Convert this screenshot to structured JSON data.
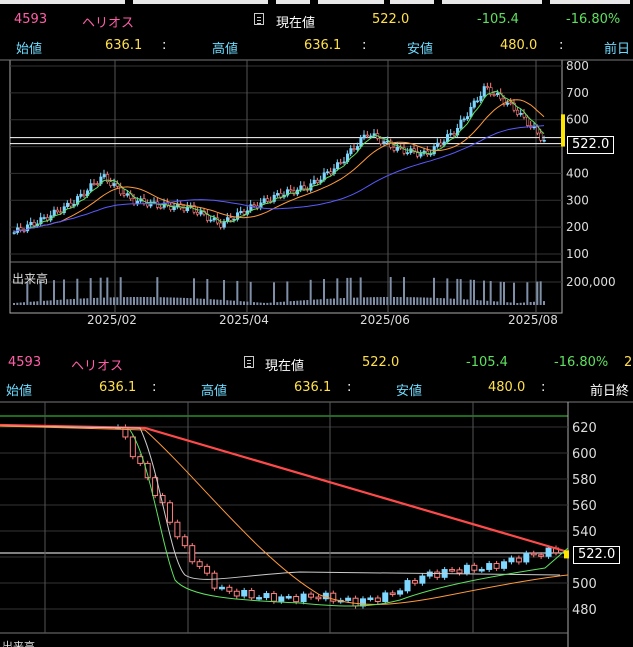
{
  "upper": {
    "code": "4593",
    "name": "ヘリオス",
    "current_label": "現在値",
    "current_value": "522.0",
    "change": "-105.4",
    "change_pct": "-16.80%",
    "open_label": "始値",
    "open_value": "636.1",
    "sep": ":",
    "high_label": "高値",
    "high_value": "636.1",
    "low_label": "安値",
    "low_value": "480.0",
    "prev_label": "前日",
    "price_tag": "522.0",
    "volume_label": "出来高"
  },
  "lower": {
    "code": "4593",
    "name": "ヘリオス",
    "current_label": "現在値",
    "current_value": "522.0",
    "change": "-105.4",
    "change_pct": "-16.80%",
    "extra": "2",
    "open_label": "始値",
    "open_value": "636.1",
    "sep": ":",
    "high_label": "高値",
    "high_value": "636.1",
    "low_label": "安値",
    "low_value": "480.0",
    "prev_label": "前日終",
    "price_tag": "522.0",
    "volume_label": "出来高"
  },
  "colors": {
    "up_candle": "#7fd8ff",
    "down_candle": "#ff7f7f",
    "ma_short": "#5fe05f",
    "ma_mid": "#ff9a3c",
    "ma_long": "#5a5aff",
    "trend": "#ff4a4a",
    "price_bar": "#ffe600"
  },
  "chart_data": [
    {
      "type": "candlestick",
      "title": "4593 ヘリオス",
      "x_tick_labels": [
        "2025/02",
        "2025/04",
        "2025/06",
        "2025/08"
      ],
      "y_tick_labels": [
        "800",
        "700",
        "600",
        "500",
        "400",
        "300",
        "200",
        "100"
      ],
      "ylim": [
        100,
        800
      ],
      "volume_tick_label": "200,000",
      "close_series": [
        {
          "date": "2024/12",
          "value": 180
        },
        {
          "date": "2025/01",
          "value": 230
        },
        {
          "date": "2025/01b",
          "value": 290
        },
        {
          "date": "2025/02",
          "value": 390
        },
        {
          "date": "2025/02b",
          "value": 300
        },
        {
          "date": "2025/03",
          "value": 280
        },
        {
          "date": "2025/03b",
          "value": 270
        },
        {
          "date": "2025/04",
          "value": 210
        },
        {
          "date": "2025/04b",
          "value": 270
        },
        {
          "date": "2025/05",
          "value": 320
        },
        {
          "date": "2025/05b",
          "value": 350
        },
        {
          "date": "2025/06",
          "value": 430
        },
        {
          "date": "2025/06b",
          "value": 550
        },
        {
          "date": "2025/06c",
          "value": 490
        },
        {
          "date": "2025/07",
          "value": 470
        },
        {
          "date": "2025/07b",
          "value": 560
        },
        {
          "date": "2025/07c",
          "value": 720
        },
        {
          "date": "2025/08",
          "value": 640
        },
        {
          "date": "2025/08b",
          "value": 522
        }
      ],
      "current_price": 522.0
    },
    {
      "type": "candlestick",
      "title": "4593 ヘリオス",
      "y_tick_labels": [
        "620",
        "600",
        "580",
        "560",
        "540",
        "520",
        "500",
        "480"
      ],
      "ylim": [
        470,
        630
      ],
      "close_series": [
        {
          "index": 1,
          "value": 620
        },
        {
          "index": 2,
          "value": 575
        },
        {
          "index": 3,
          "value": 525
        },
        {
          "index": 4,
          "value": 495
        },
        {
          "index": 5,
          "value": 490
        },
        {
          "index": 6,
          "value": 488
        },
        {
          "index": 7,
          "value": 490
        },
        {
          "index": 8,
          "value": 485
        },
        {
          "index": 9,
          "value": 490
        },
        {
          "index": 10,
          "value": 505
        },
        {
          "index": 11,
          "value": 510
        },
        {
          "index": 12,
          "value": 512
        },
        {
          "index": 13,
          "value": 520
        },
        {
          "index": 14,
          "value": 525
        }
      ],
      "current_price": 522.0
    }
  ]
}
